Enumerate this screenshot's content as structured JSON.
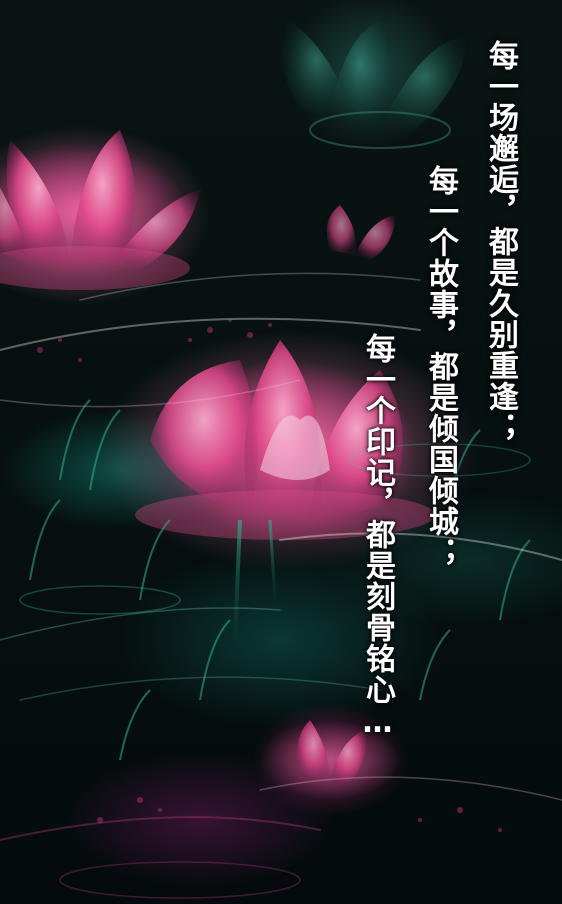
{
  "poem": {
    "lines": [
      "每一场邂逅，都是久别重逢；",
      "每一个故事，都是倾国倾城；",
      "每一个印记，都是刻骨铭心…"
    ]
  },
  "palette": {
    "flower_pink": "#e8508f",
    "petal_light": "#f5c6da",
    "leaf_green": "#1f9e7e",
    "background": "#050a0c",
    "text": "#ffffff"
  }
}
